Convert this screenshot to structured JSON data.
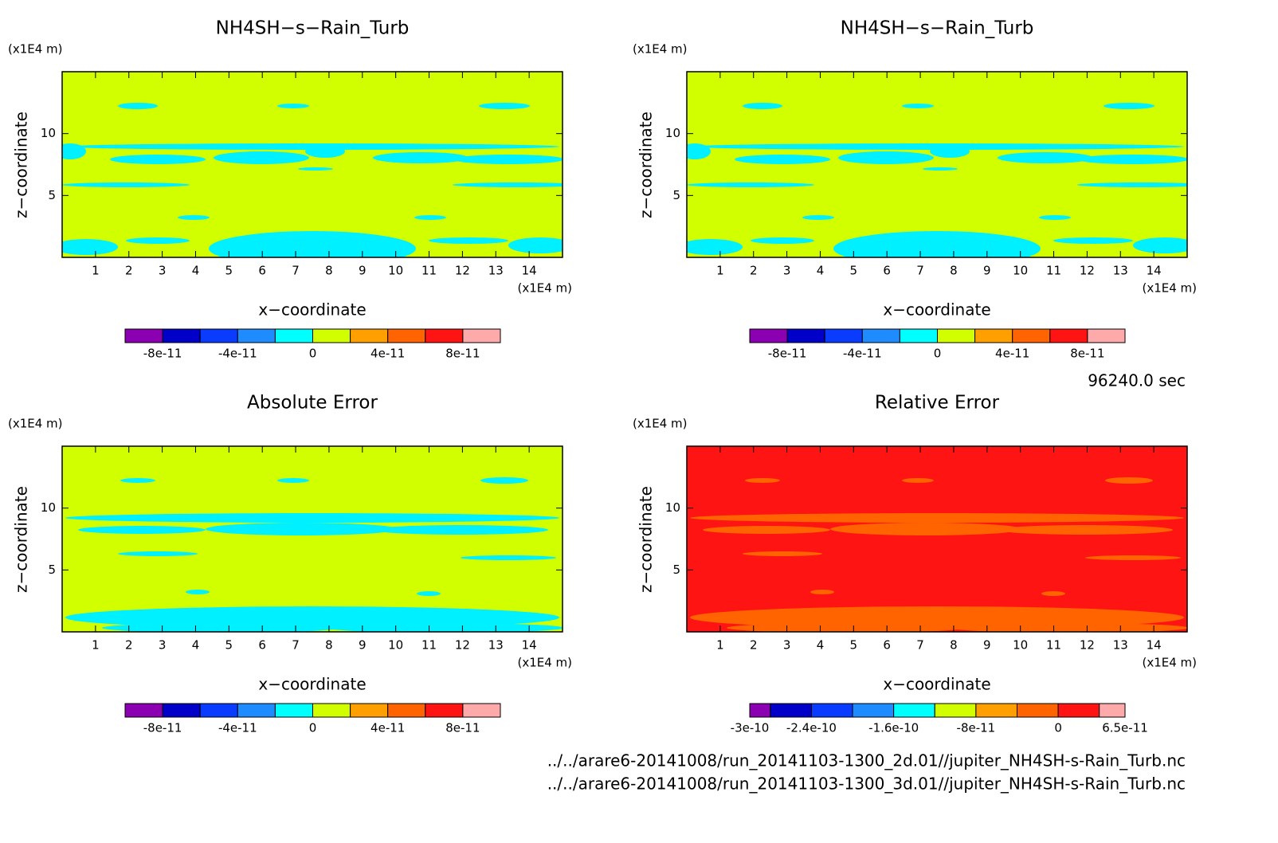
{
  "chart_data": [
    {
      "type": "contour",
      "title": "NH4SH−s−Rain_Turb",
      "y_unit": "(x1E4 m)",
      "y_label": "z−coordinate",
      "x_unit": "(x1E4 m)",
      "x_label": "x−coordinate",
      "xlim": [
        0,
        15
      ],
      "ylim": [
        0,
        15
      ],
      "xticks": [
        1,
        2,
        3,
        4,
        5,
        6,
        7,
        8,
        9,
        10,
        11,
        12,
        13,
        14
      ],
      "yticks": [
        5,
        10
      ],
      "field_color": "#d2ff00",
      "feature_color": "#00f0ff",
      "colorbar": {
        "levels": [
          -1e-10,
          -8e-11,
          -6e-11,
          -4e-11,
          -2e-11,
          0,
          2e-11,
          4e-11,
          6e-11,
          8e-11,
          1e-10
        ],
        "colors": [
          "#8b00b0",
          "#0000c8",
          "#0a3cff",
          "#1e8cff",
          "#00ffff",
          "#d2ff00",
          "#ffa000",
          "#ff6400",
          "#ff1414",
          "#ffaaaa"
        ],
        "ticks": [
          {
            "value": -8e-11,
            "label": "-8e-11"
          },
          {
            "value": -4e-11,
            "label": "-4e-11"
          },
          0,
          {
            "value": 4e-11,
            "label": "4e-11"
          },
          {
            "value": 8e-11,
            "label": "8e-11"
          }
        ]
      }
    },
    {
      "type": "contour",
      "title": "NH4SH−s−Rain_Turb",
      "y_unit": "(x1E4 m)",
      "y_label": "z−coordinate",
      "x_unit": "(x1E4 m)",
      "x_label": "x−coordinate",
      "xlim": [
        0,
        15
      ],
      "ylim": [
        0,
        15
      ],
      "xticks": [
        1,
        2,
        3,
        4,
        5,
        6,
        7,
        8,
        9,
        10,
        11,
        12,
        13,
        14
      ],
      "yticks": [
        5,
        10
      ],
      "field_color": "#d2ff00",
      "feature_color": "#00f0ff",
      "colorbar": {
        "levels": [
          -1e-10,
          -8e-11,
          -6e-11,
          -4e-11,
          -2e-11,
          0,
          2e-11,
          4e-11,
          6e-11,
          8e-11,
          1e-10
        ],
        "colors": [
          "#8b00b0",
          "#0000c8",
          "#0a3cff",
          "#1e8cff",
          "#00ffff",
          "#d2ff00",
          "#ffa000",
          "#ff6400",
          "#ff1414",
          "#ffaaaa"
        ],
        "ticks": [
          {
            "value": -8e-11,
            "label": "-8e-11"
          },
          {
            "value": -4e-11,
            "label": "-4e-11"
          },
          0,
          {
            "value": 4e-11,
            "label": "4e-11"
          },
          {
            "value": 8e-11,
            "label": "8e-11"
          }
        ]
      }
    },
    {
      "type": "contour",
      "title": "Absolute Error",
      "y_unit": "(x1E4 m)",
      "y_label": "z−coordinate",
      "x_unit": "(x1E4 m)",
      "x_label": "x−coordinate",
      "xlim": [
        0,
        15
      ],
      "ylim": [
        0,
        15
      ],
      "xticks": [
        1,
        2,
        3,
        4,
        5,
        6,
        7,
        8,
        9,
        10,
        11,
        12,
        13,
        14
      ],
      "yticks": [
        5,
        10
      ],
      "field_color": "#d2ff00",
      "feature_color": "#00f0ff",
      "colorbar": {
        "levels": [
          -1e-10,
          -8e-11,
          -6e-11,
          -4e-11,
          -2e-11,
          0,
          2e-11,
          4e-11,
          6e-11,
          8e-11,
          1e-10
        ],
        "colors": [
          "#8b00b0",
          "#0000c8",
          "#0a3cff",
          "#1e8cff",
          "#00ffff",
          "#d2ff00",
          "#ffa000",
          "#ff6400",
          "#ff1414",
          "#ffaaaa"
        ],
        "ticks": [
          {
            "value": -8e-11,
            "label": "-8e-11"
          },
          {
            "value": -4e-11,
            "label": "-4e-11"
          },
          0,
          {
            "value": 4e-11,
            "label": "4e-11"
          },
          {
            "value": 8e-11,
            "label": "8e-11"
          }
        ]
      }
    },
    {
      "type": "contour",
      "title": "Relative Error",
      "y_unit": "(x1E4 m)",
      "y_label": "z−coordinate",
      "x_unit": "(x1E4 m)",
      "x_label": "x−coordinate",
      "xlim": [
        0,
        15
      ],
      "ylim": [
        0,
        15
      ],
      "xticks": [
        1,
        2,
        3,
        4,
        5,
        6,
        7,
        8,
        9,
        10,
        11,
        12,
        13,
        14
      ],
      "yticks": [
        5,
        10
      ],
      "field_color": "#ff1414",
      "feature_color": "#ff6400",
      "colorbar": {
        "levels": [
          -3e-10,
          -2.8e-10,
          -2.4e-10,
          -2e-10,
          -1.6e-10,
          -1.2e-10,
          -8e-11,
          -4e-11,
          0,
          4e-11,
          6.5e-11
        ],
        "colors": [
          "#8b00b0",
          "#0000c8",
          "#0a3cff",
          "#1e8cff",
          "#00ffff",
          "#d2ff00",
          "#ffa000",
          "#ff6400",
          "#ff1414",
          "#ffaaaa"
        ],
        "ticks": [
          {
            "value": -3e-10,
            "label": "-3e-10"
          },
          {
            "value": -2.4e-10,
            "label": "-2.4e-10"
          },
          {
            "value": -1.6e-10,
            "label": "-1.6e-10"
          },
          {
            "value": -8e-11,
            "label": "-8e-11"
          },
          0,
          {
            "value": 6.5e-11,
            "label": "6.5e-11"
          }
        ]
      }
    }
  ],
  "time": "96240.0 sec",
  "files": [
    "../../arare6-20141008/run_20141103-1300_2d.01//jupiter_NH4SH-s-Rain_Turb.nc",
    "../../arare6-20141008/run_20141103-1300_3d.01//jupiter_NH4SH-s-Rain_Turb.nc"
  ]
}
